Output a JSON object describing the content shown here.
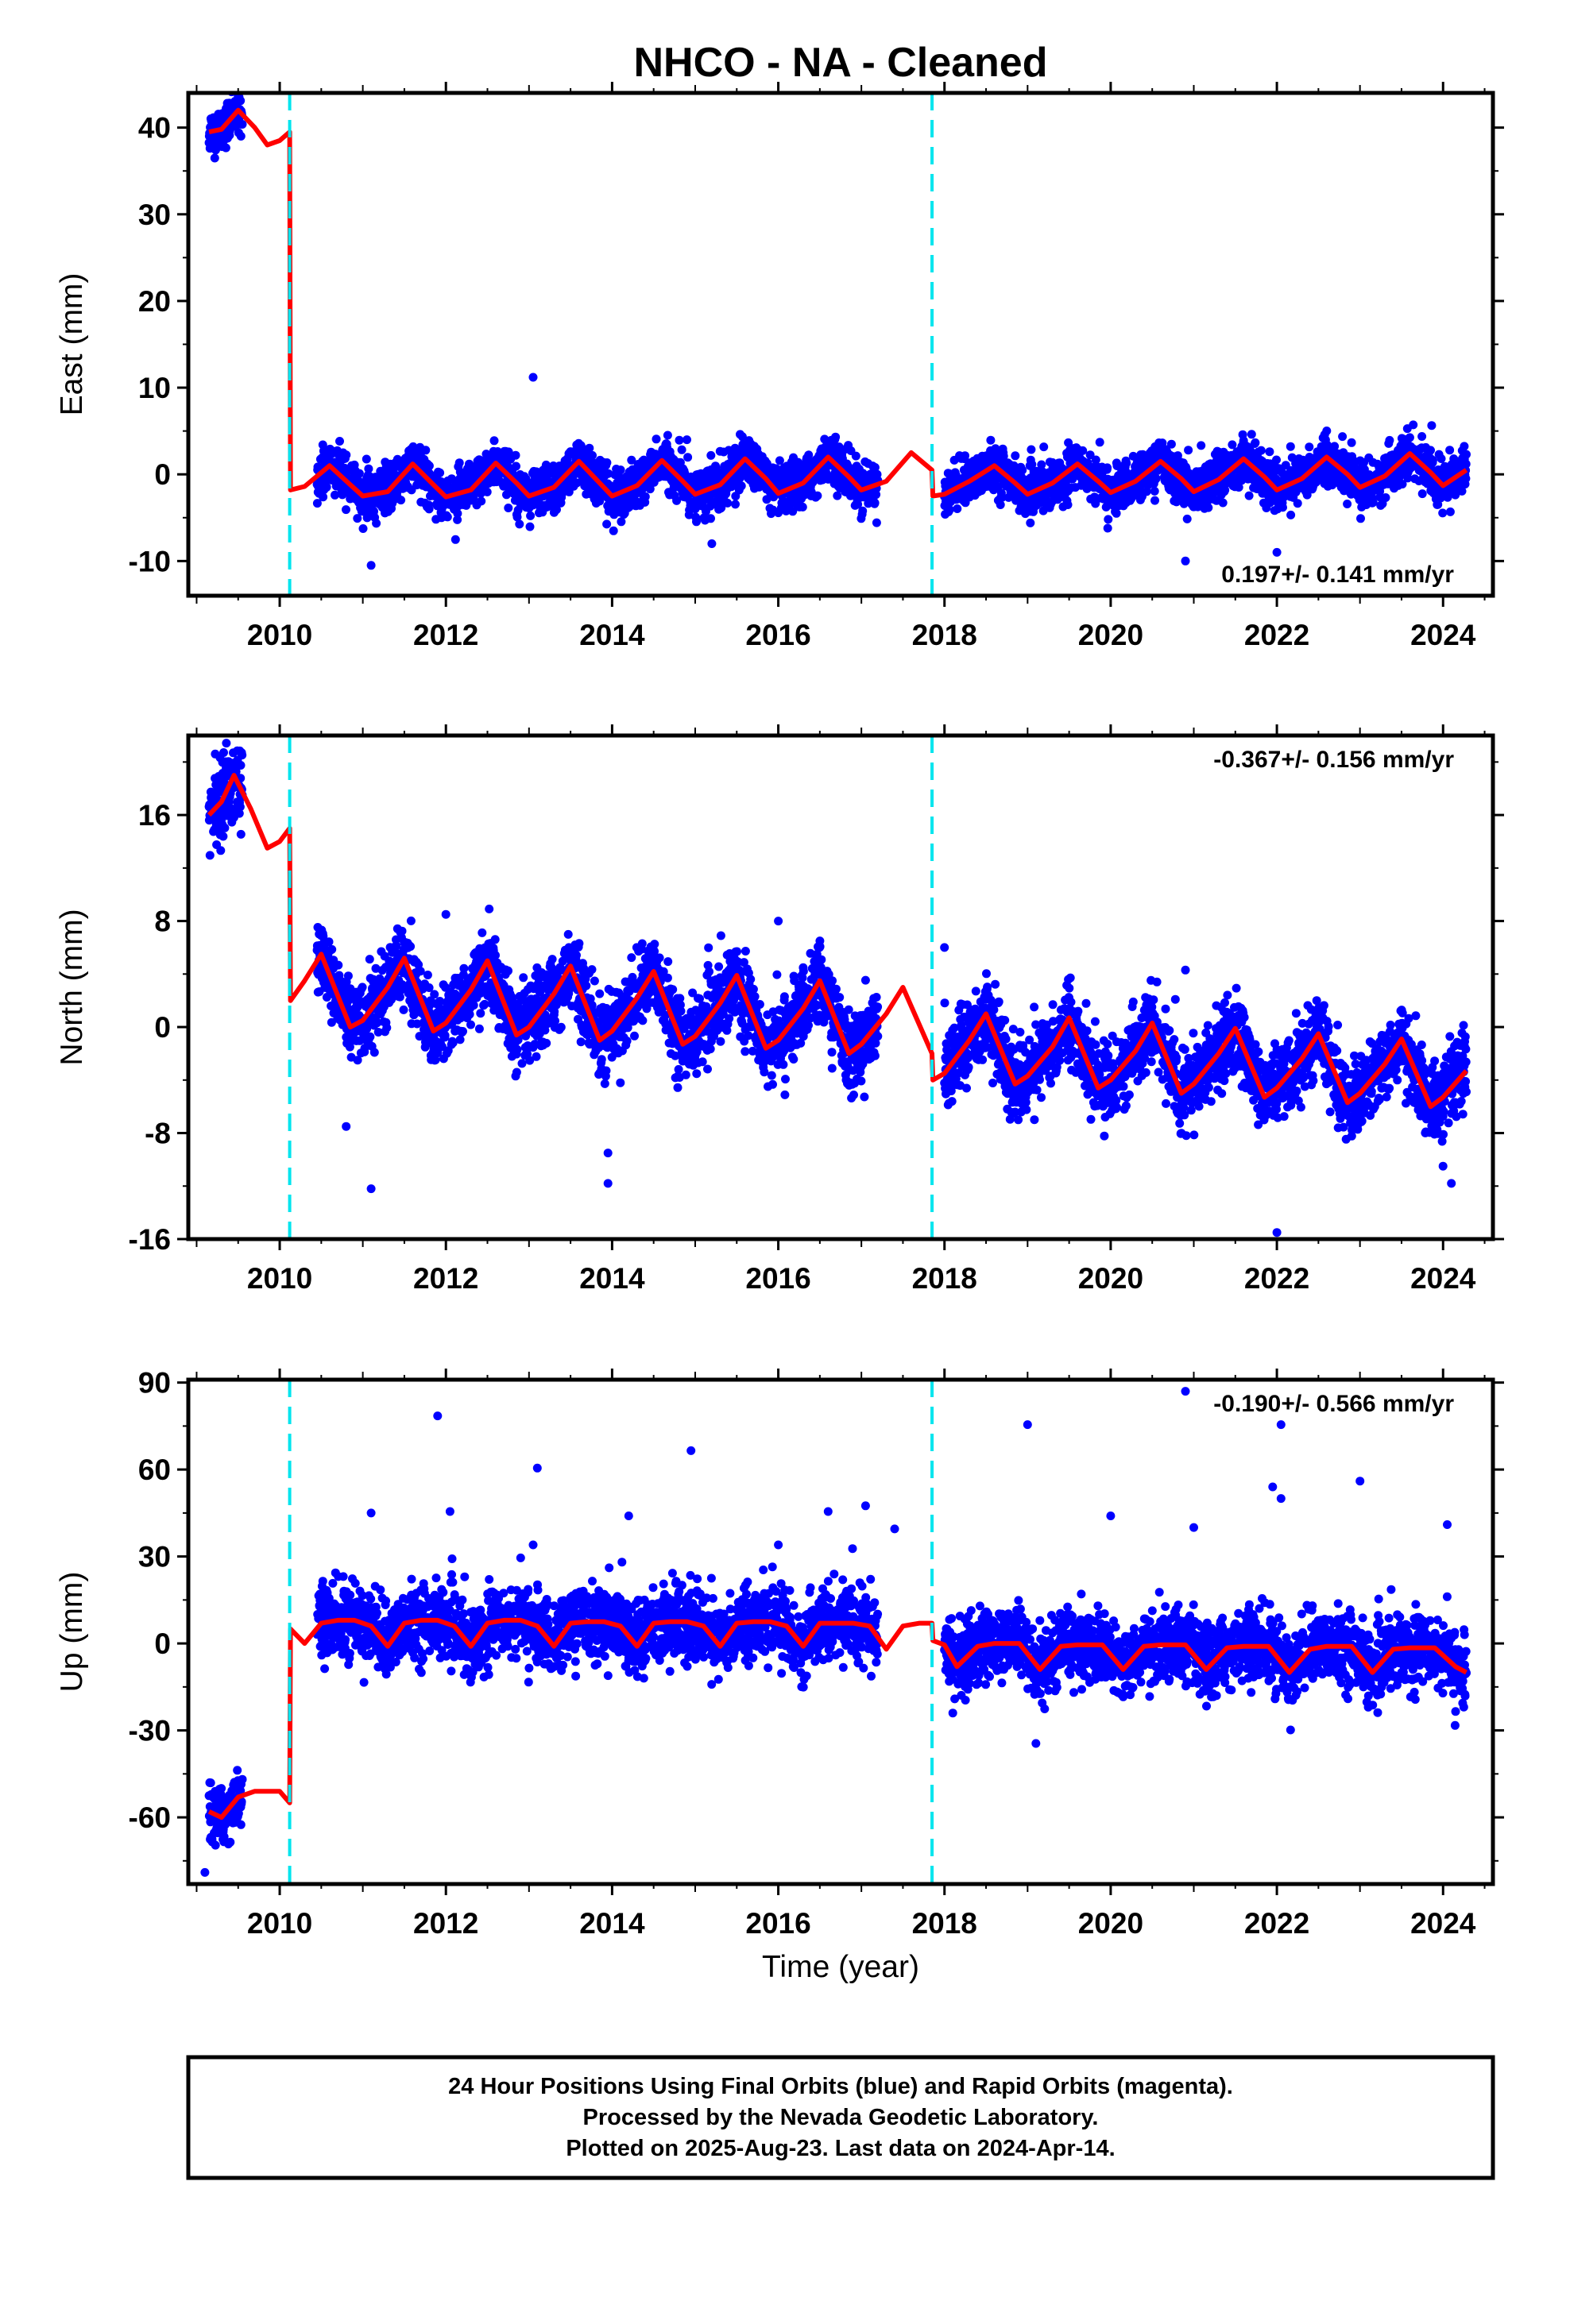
{
  "title": "NHCO  - NA - Cleaned",
  "xlabel": "Time (year)",
  "footer": {
    "lines": [
      "24 Hour Positions Using Final Orbits (blue) and Rapid Orbits (magenta).",
      "Processed by the Nevada Geodetic Laboratory.",
      "Plotted on 2025-Aug-23. Last data on 2024-Apr-14."
    ]
  },
  "colors": {
    "data_points": "#0000ff",
    "model_line": "#ff0000",
    "break_lines": "#00e5ee",
    "frame": "#000000"
  },
  "chart_data": [
    {
      "type": "scatter",
      "ylabel": "East (mm)",
      "rate": "0.197+/- 0.141 mm/yr",
      "xlim": [
        2008.9,
        2024.6
      ],
      "ylim": [
        -14,
        44
      ],
      "xticks": [
        "2010",
        "2012",
        "2014",
        "2016",
        "2018",
        "2020",
        "2022",
        "2024"
      ],
      "yticks": [
        "40",
        "30",
        "20",
        "10",
        "0",
        "-10"
      ],
      "ytick_values": [
        40,
        30,
        20,
        10,
        0,
        -10
      ],
      "breaks": [
        2010.12,
        2017.85
      ],
      "data_segments": [
        {
          "x_start": 2009.15,
          "x_end": 2009.55,
          "offset": 40,
          "amplitude": 1.5,
          "noise": 1.2
        },
        {
          "x_start": 2010.45,
          "x_end": 2017.2,
          "offset": -0.6,
          "amplitude": 2.0,
          "noise": 1.3
        },
        {
          "x_start": 2018.0,
          "x_end": 2024.28,
          "offset": -0.2,
          "amplitude": 1.8,
          "noise": 1.3
        }
      ],
      "model": [
        [
          2009.15,
          39.5
        ],
        [
          2009.3,
          39.8
        ],
        [
          2009.5,
          42
        ],
        [
          2009.7,
          40
        ],
        [
          2009.85,
          38
        ],
        [
          2010.0,
          38.5
        ],
        [
          2010.12,
          39.5
        ],
        [
          2010.13,
          -1.8
        ],
        [
          2010.3,
          -1.4
        ],
        [
          2010.6,
          1.0
        ],
        [
          2010.85,
          -1.2
        ],
        [
          2011.0,
          -2.5
        ],
        [
          2011.3,
          -2.0
        ],
        [
          2011.6,
          1.2
        ],
        [
          2011.85,
          -1.2
        ],
        [
          2012.0,
          -2.6
        ],
        [
          2012.3,
          -1.8
        ],
        [
          2012.6,
          1.3
        ],
        [
          2012.85,
          -1.0
        ],
        [
          2013.0,
          -2.5
        ],
        [
          2013.3,
          -1.5
        ],
        [
          2013.6,
          1.5
        ],
        [
          2013.85,
          -1.0
        ],
        [
          2014.0,
          -2.5
        ],
        [
          2014.3,
          -1.3
        ],
        [
          2014.6,
          1.6
        ],
        [
          2014.85,
          -0.8
        ],
        [
          2015.0,
          -2.3
        ],
        [
          2015.3,
          -1.2
        ],
        [
          2015.6,
          1.8
        ],
        [
          2015.85,
          -0.5
        ],
        [
          2016.0,
          -2.2
        ],
        [
          2016.3,
          -1.0
        ],
        [
          2016.6,
          2.0
        ],
        [
          2016.85,
          -0.3
        ],
        [
          2017.0,
          -1.8
        ],
        [
          2017.3,
          -0.8
        ],
        [
          2017.6,
          2.5
        ],
        [
          2017.85,
          0.5
        ],
        [
          2017.86,
          -2.5
        ],
        [
          2018.0,
          -2.3
        ],
        [
          2018.3,
          -0.8
        ],
        [
          2018.6,
          1.0
        ],
        [
          2018.85,
          -1.0
        ],
        [
          2019.0,
          -2.3
        ],
        [
          2019.3,
          -1.0
        ],
        [
          2019.6,
          1.2
        ],
        [
          2019.85,
          -0.8
        ],
        [
          2020.0,
          -2.1
        ],
        [
          2020.3,
          -0.8
        ],
        [
          2020.6,
          1.5
        ],
        [
          2020.85,
          -0.5
        ],
        [
          2021.0,
          -2.0
        ],
        [
          2021.3,
          -0.6
        ],
        [
          2021.6,
          1.8
        ],
        [
          2021.85,
          -0.3
        ],
        [
          2022.0,
          -1.8
        ],
        [
          2022.3,
          -0.5
        ],
        [
          2022.6,
          2.0
        ],
        [
          2022.85,
          0.0
        ],
        [
          2023.0,
          -1.5
        ],
        [
          2023.3,
          -0.2
        ],
        [
          2023.6,
          2.4
        ],
        [
          2023.85,
          0.2
        ],
        [
          2024.0,
          -1.3
        ],
        [
          2024.28,
          0.5
        ]
      ],
      "outliers": [
        [
          2013.05,
          11.2
        ],
        [
          2011.1,
          -10.5
        ],
        [
          2015.2,
          -8
        ],
        [
          2020.9,
          -10
        ],
        [
          2022.0,
          -9
        ],
        [
          2014.9,
          4
        ]
      ]
    },
    {
      "type": "scatter",
      "ylabel": "North (mm)",
      "rate": "-0.367+/- 0.156 mm/yr",
      "xlim": [
        2008.9,
        2024.6
      ],
      "ylim": [
        -16,
        22
      ],
      "xticks": [
        "2010",
        "2012",
        "2014",
        "2016",
        "2018",
        "2020",
        "2022",
        "2024"
      ],
      "yticks": [
        "16",
        "8",
        "0",
        "-8",
        "-16"
      ],
      "ytick_values": [
        16,
        8,
        0,
        -8,
        -16
      ],
      "breaks": [
        2010.12,
        2017.85
      ],
      "data_segments": [
        {
          "x_start": 2009.15,
          "x_end": 2009.55,
          "offset": 17,
          "amplitude": 2.0,
          "noise": 1.5
        },
        {
          "x_start": 2010.45,
          "x_end": 2017.2,
          "offset": 2.0,
          "amplitude": 2.8,
          "noise": 1.4
        },
        {
          "x_start": 2018.0,
          "x_end": 2024.28,
          "offset": -2.2,
          "amplitude": 2.8,
          "noise": 1.4
        }
      ],
      "model": [
        [
          2009.15,
          16
        ],
        [
          2009.3,
          17
        ],
        [
          2009.45,
          19
        ],
        [
          2009.65,
          16.5
        ],
        [
          2009.85,
          13.5
        ],
        [
          2010.0,
          14
        ],
        [
          2010.12,
          15
        ],
        [
          2010.13,
          2.0
        ],
        [
          2010.3,
          3.5
        ],
        [
          2010.5,
          5.5
        ],
        [
          2010.85,
          0.0
        ],
        [
          2011.0,
          0.5
        ],
        [
          2011.3,
          3.0
        ],
        [
          2011.5,
          5.2
        ],
        [
          2011.85,
          -0.3
        ],
        [
          2012.0,
          0.3
        ],
        [
          2012.3,
          2.8
        ],
        [
          2012.5,
          5.0
        ],
        [
          2012.85,
          -0.6
        ],
        [
          2013.0,
          0.0
        ],
        [
          2013.3,
          2.5
        ],
        [
          2013.5,
          4.6
        ],
        [
          2013.85,
          -1.0
        ],
        [
          2014.0,
          -0.3
        ],
        [
          2014.3,
          2.2
        ],
        [
          2014.5,
          4.2
        ],
        [
          2014.85,
          -1.3
        ],
        [
          2015.0,
          -0.7
        ],
        [
          2015.3,
          1.8
        ],
        [
          2015.5,
          3.9
        ],
        [
          2015.85,
          -1.6
        ],
        [
          2016.0,
          -1.0
        ],
        [
          2016.3,
          1.4
        ],
        [
          2016.5,
          3.5
        ],
        [
          2016.85,
          -2.0
        ],
        [
          2017.0,
          -1.3
        ],
        [
          2017.3,
          1.0
        ],
        [
          2017.5,
          3.0
        ],
        [
          2017.85,
          -2.0
        ],
        [
          2017.86,
          -4.0
        ],
        [
          2018.0,
          -3.5
        ],
        [
          2018.3,
          -1.0
        ],
        [
          2018.5,
          1.0
        ],
        [
          2018.85,
          -4.3
        ],
        [
          2019.0,
          -3.7
        ],
        [
          2019.3,
          -1.5
        ],
        [
          2019.5,
          0.7
        ],
        [
          2019.85,
          -4.6
        ],
        [
          2020.0,
          -4.0
        ],
        [
          2020.3,
          -1.8
        ],
        [
          2020.5,
          0.3
        ],
        [
          2020.85,
          -5.0
        ],
        [
          2021.0,
          -4.3
        ],
        [
          2021.3,
          -2.0
        ],
        [
          2021.5,
          -0.1
        ],
        [
          2021.85,
          -5.3
        ],
        [
          2022.0,
          -4.6
        ],
        [
          2022.3,
          -2.4
        ],
        [
          2022.5,
          -0.5
        ],
        [
          2022.85,
          -5.7
        ],
        [
          2023.0,
          -5.0
        ],
        [
          2023.3,
          -2.8
        ],
        [
          2023.5,
          -0.9
        ],
        [
          2023.85,
          -6.0
        ],
        [
          2024.0,
          -5.3
        ],
        [
          2024.28,
          -3.3
        ]
      ],
      "outliers": [
        [
          2011.1,
          -12.2
        ],
        [
          2010.8,
          -7.5
        ],
        [
          2013.95,
          -9.5
        ],
        [
          2013.95,
          -11.8
        ],
        [
          2016.0,
          8.0
        ],
        [
          2012.0,
          8.5
        ],
        [
          2016.5,
          6.5
        ],
        [
          2022.0,
          -15.5
        ],
        [
          2024.1,
          -11.8
        ],
        [
          2024.0,
          -10.5
        ],
        [
          2018.0,
          6.0
        ],
        [
          2020.9,
          4.3
        ]
      ]
    },
    {
      "type": "scatter",
      "ylabel": "Up (mm)",
      "rate": "-0.190+/- 0.566 mm/yr",
      "xlim": [
        2008.9,
        2024.6
      ],
      "ylim": [
        -83,
        91
      ],
      "xticks": [
        "2010",
        "2012",
        "2014",
        "2016",
        "2018",
        "2020",
        "2022",
        "2024"
      ],
      "yticks": [
        "90",
        "60",
        "30",
        "0",
        "-30",
        "-60"
      ],
      "ytick_values": [
        90,
        60,
        30,
        0,
        -30,
        -60
      ],
      "breaks": [
        2010.12,
        2017.85
      ],
      "data_segments": [
        {
          "x_start": 2009.15,
          "x_end": 2009.55,
          "offset": -56,
          "amplitude": 3,
          "noise": 5
        },
        {
          "x_start": 2010.45,
          "x_end": 2017.2,
          "offset": 5,
          "amplitude": 4,
          "noise": 6
        },
        {
          "x_start": 2018.0,
          "x_end": 2024.28,
          "offset": -3,
          "amplitude": 4,
          "noise": 6
        }
      ],
      "model": [
        [
          2009.15,
          -58
        ],
        [
          2009.3,
          -60
        ],
        [
          2009.5,
          -53
        ],
        [
          2009.7,
          -51
        ],
        [
          2009.9,
          -51
        ],
        [
          2010.0,
          -51
        ],
        [
          2010.12,
          -55
        ],
        [
          2010.13,
          5
        ],
        [
          2010.3,
          0
        ],
        [
          2010.5,
          7
        ],
        [
          2010.7,
          8
        ],
        [
          2010.9,
          8
        ],
        [
          2011.1,
          6
        ],
        [
          2011.3,
          -1
        ],
        [
          2011.5,
          7
        ],
        [
          2011.7,
          8
        ],
        [
          2011.9,
          8
        ],
        [
          2012.1,
          6
        ],
        [
          2012.3,
          -1
        ],
        [
          2012.5,
          7
        ],
        [
          2012.7,
          8
        ],
        [
          2012.9,
          8
        ],
        [
          2013.1,
          6
        ],
        [
          2013.3,
          -1
        ],
        [
          2013.5,
          7
        ],
        [
          2013.7,
          7.5
        ],
        [
          2013.9,
          7.5
        ],
        [
          2014.1,
          6
        ],
        [
          2014.3,
          -1
        ],
        [
          2014.5,
          7
        ],
        [
          2014.7,
          7.5
        ],
        [
          2014.9,
          7.5
        ],
        [
          2015.1,
          6
        ],
        [
          2015.3,
          -1
        ],
        [
          2015.5,
          7
        ],
        [
          2015.7,
          7.5
        ],
        [
          2015.9,
          7.5
        ],
        [
          2016.1,
          6
        ],
        [
          2016.3,
          -1
        ],
        [
          2016.5,
          7
        ],
        [
          2016.7,
          7
        ],
        [
          2016.9,
          7
        ],
        [
          2017.1,
          6
        ],
        [
          2017.3,
          -2
        ],
        [
          2017.5,
          6
        ],
        [
          2017.7,
          7
        ],
        [
          2017.85,
          7
        ],
        [
          2017.86,
          1
        ],
        [
          2018.0,
          -0.5
        ],
        [
          2018.15,
          -8
        ],
        [
          2018.4,
          -1
        ],
        [
          2018.6,
          0
        ],
        [
          2018.9,
          0
        ],
        [
          2019.15,
          -9
        ],
        [
          2019.4,
          -1
        ],
        [
          2019.6,
          -0.5
        ],
        [
          2019.9,
          -0.5
        ],
        [
          2020.15,
          -9
        ],
        [
          2020.4,
          -1
        ],
        [
          2020.6,
          -0.5
        ],
        [
          2020.9,
          -0.5
        ],
        [
          2021.15,
          -9
        ],
        [
          2021.4,
          -1.5
        ],
        [
          2021.6,
          -1
        ],
        [
          2021.9,
          -1
        ],
        [
          2022.15,
          -10
        ],
        [
          2022.4,
          -2
        ],
        [
          2022.6,
          -1
        ],
        [
          2022.9,
          -1
        ],
        [
          2023.15,
          -10
        ],
        [
          2023.4,
          -2
        ],
        [
          2023.6,
          -1.5
        ],
        [
          2023.9,
          -1.5
        ],
        [
          2024.15,
          -8
        ],
        [
          2024.28,
          -10
        ]
      ],
      "outliers": [
        [
          2011.9,
          78.5
        ],
        [
          2013.1,
          60.5
        ],
        [
          2014.95,
          66.5
        ],
        [
          2011.1,
          45
        ],
        [
          2012.05,
          45.5
        ],
        [
          2014.2,
          44
        ],
        [
          2016.6,
          45.5
        ],
        [
          2017.05,
          47.5
        ],
        [
          2017.4,
          39.5
        ],
        [
          2019.0,
          75.5
        ],
        [
          2020.9,
          87
        ],
        [
          2022.05,
          75.5
        ],
        [
          2021.95,
          54
        ],
        [
          2022.05,
          50
        ],
        [
          2023.0,
          56
        ],
        [
          2024.05,
          41
        ],
        [
          2020.0,
          44
        ],
        [
          2019.1,
          -34.5
        ],
        [
          2009.1,
          -79
        ],
        [
          2018.1,
          -24
        ],
        [
          2023.1,
          -22
        ],
        [
          2013.05,
          34
        ],
        [
          2016.0,
          34
        ],
        [
          2021.0,
          40
        ]
      ]
    }
  ]
}
